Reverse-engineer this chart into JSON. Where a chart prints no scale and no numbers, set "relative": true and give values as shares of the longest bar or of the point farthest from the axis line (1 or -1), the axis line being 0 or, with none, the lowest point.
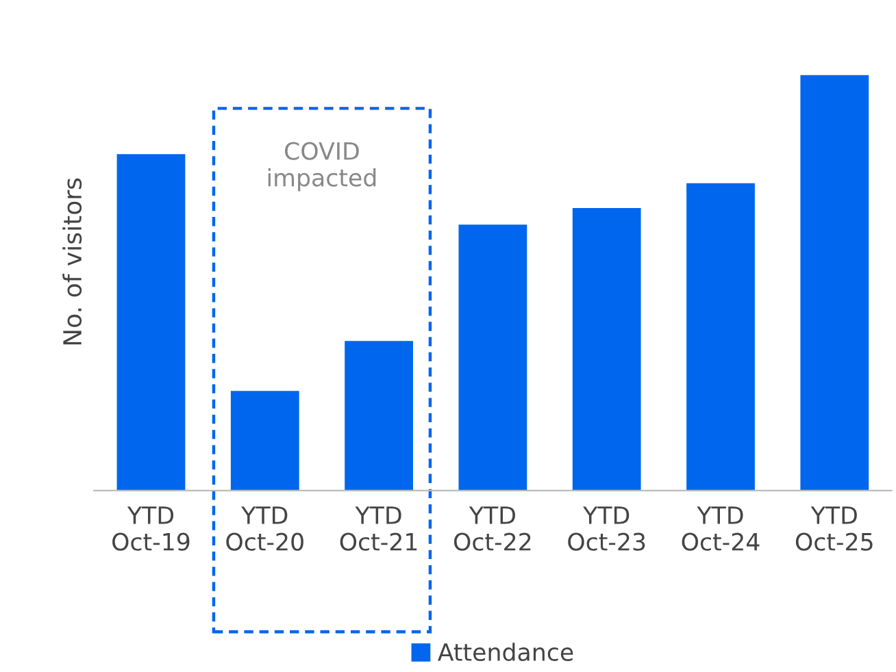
{
  "chart_data": {
    "type": "bar",
    "relative": true,
    "ylabel": "No. of visitors",
    "categories": [
      "YTD\nOct-19",
      "YTD\nOct-20",
      "YTD\nOct-21",
      "YTD\nOct-22",
      "YTD\nOct-23",
      "YTD\nOct-24",
      "YTD\nOct-25"
    ],
    "series": [
      {
        "name": "Attendance",
        "color": "#0066ee",
        "values": [
          0.81,
          0.24,
          0.36,
          0.64,
          0.68,
          0.74,
          1.0
        ]
      }
    ],
    "annotations": [
      "COVID\nimpacted"
    ],
    "legend": "bottom",
    "grid": false
  }
}
